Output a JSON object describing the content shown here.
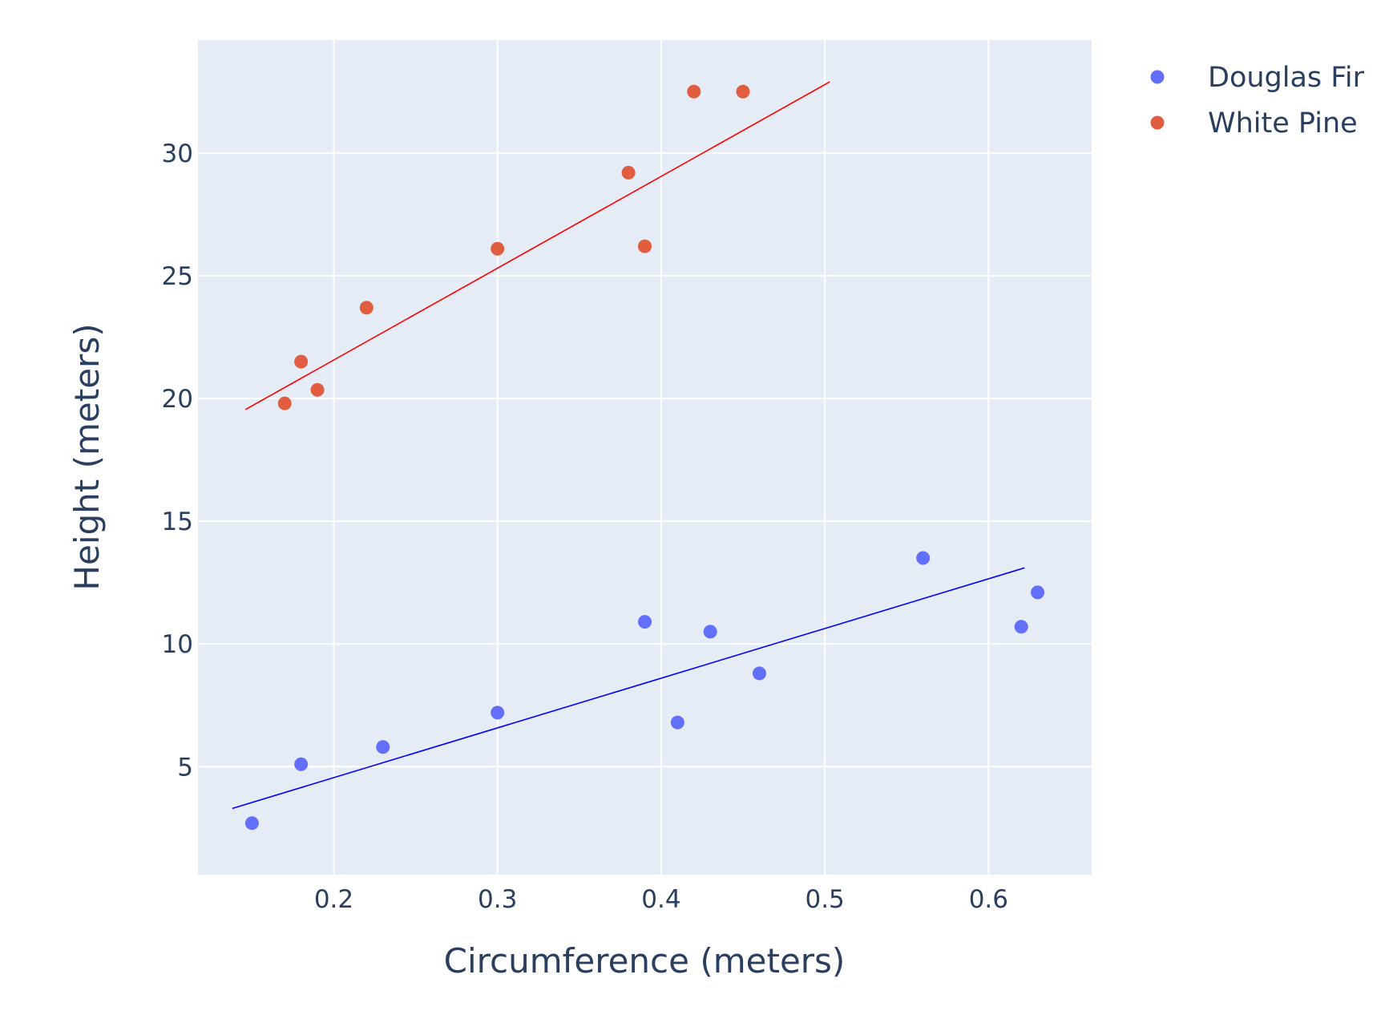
{
  "chart_data": {
    "type": "scatter",
    "title": "",
    "xlabel": "Circumference (meters)",
    "ylabel": "Height (meters)",
    "xlim": [
      0.117,
      0.663
    ],
    "ylim": [
      0.6,
      34.6
    ],
    "xticks": [
      0.2,
      0.3,
      0.4,
      0.5,
      0.6
    ],
    "xtick_labels": [
      "0.2",
      "0.3",
      "0.4",
      "0.5",
      "0.6"
    ],
    "yticks": [
      5,
      10,
      15,
      20,
      25,
      30
    ],
    "ytick_labels": [
      "5",
      "10",
      "15",
      "20",
      "25",
      "30"
    ],
    "grid": true,
    "legend_position": "top-right-outside",
    "series": [
      {
        "name": "Douglas Fir",
        "color": "#636efa",
        "x": [
          0.15,
          0.18,
          0.23,
          0.3,
          0.39,
          0.41,
          0.43,
          0.46,
          0.56,
          0.62,
          0.63
        ],
        "y": [
          2.7,
          5.1,
          5.8,
          7.2,
          10.9,
          6.8,
          10.5,
          8.8,
          13.5,
          10.7,
          12.1
        ],
        "trendline": {
          "color": "#0000ff",
          "x": [
            0.138,
            0.622
          ],
          "y": [
            3.3,
            13.1
          ]
        }
      },
      {
        "name": "White Pine",
        "color": "#e05d3f",
        "x": [
          0.17,
          0.18,
          0.19,
          0.22,
          0.3,
          0.38,
          0.39,
          0.42,
          0.45
        ],
        "y": [
          19.8,
          21.5,
          20.35,
          23.7,
          26.1,
          29.2,
          26.2,
          32.5,
          32.5
        ],
        "trendline": {
          "color": "#ff0000",
          "x": [
            0.146,
            0.503
          ],
          "y": [
            19.55,
            32.9
          ]
        }
      }
    ]
  }
}
